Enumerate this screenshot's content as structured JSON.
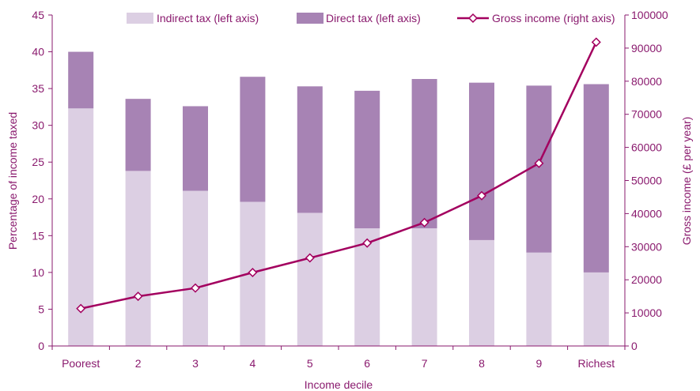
{
  "chart_data": {
    "type": "bar",
    "xlabel": "Income decile",
    "ylabel_left": "Percentage of income taxed",
    "ylabel_right": "Gross income (£ per year)",
    "categories": [
      "Poorest",
      "2",
      "3",
      "4",
      "5",
      "6",
      "7",
      "8",
      "9",
      "Richest"
    ],
    "ylim_left": [
      0,
      45
    ],
    "yticks_left": [
      0,
      5,
      10,
      15,
      20,
      25,
      30,
      35,
      40,
      45
    ],
    "ylim_right": [
      0,
      100000
    ],
    "yticks_right": [
      0,
      10000,
      20000,
      30000,
      40000,
      50000,
      60000,
      70000,
      80000,
      90000,
      100000
    ],
    "grid": false,
    "legend_position": "top",
    "stacked": true,
    "series": [
      {
        "name": "Indirect tax (left axis)",
        "axis": "left",
        "kind": "bar",
        "color": "#dccfe3",
        "values": [
          32.3,
          23.8,
          21.1,
          19.6,
          18.1,
          16.0,
          16.0,
          14.4,
          12.7,
          10.0
        ]
      },
      {
        "name": "Direct tax (left axis)",
        "axis": "left",
        "kind": "bar",
        "color": "#a783b4",
        "values": [
          7.7,
          9.8,
          11.5,
          17.0,
          17.2,
          18.7,
          20.3,
          21.4,
          22.7,
          25.6
        ]
      },
      {
        "name": "Gross income (right axis)",
        "axis": "right",
        "kind": "line",
        "color": "#a3005f",
        "values": [
          11300,
          15000,
          17500,
          22200,
          26600,
          31100,
          37300,
          45400,
          55200,
          91800
        ]
      }
    ]
  }
}
